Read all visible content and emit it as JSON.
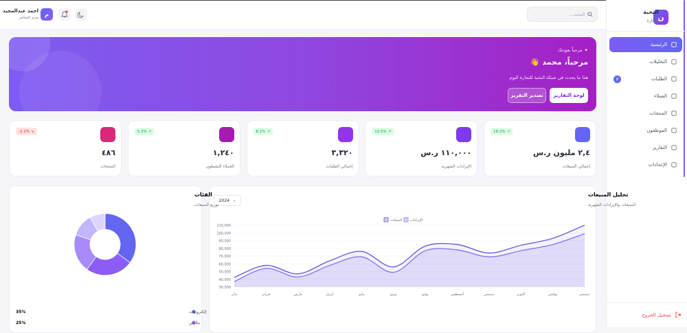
{
  "sidebar": {
    "logo": "ن",
    "title": "النخبة",
    "subtitle": "للتجارة",
    "nav": [
      {
        "label": "الرئيسية",
        "active": true
      },
      {
        "label": "التحليلات"
      },
      {
        "label": "الطلبات",
        "badge": 8
      },
      {
        "label": "العملاء"
      },
      {
        "label": "المنتجات"
      },
      {
        "label": "الموظفون"
      },
      {
        "label": "التقارير"
      },
      {
        "label": "الإعدادات"
      }
    ],
    "logout": "تسجيل الخروج"
  },
  "topbar": {
    "search_placeholder": "البحث...",
    "user": {
      "initial": "م",
      "name": "احمد عبدالمجيد",
      "role": "مدير المتاجر"
    }
  },
  "banner": {
    "eyebrow": "مرحباً بعودتك",
    "title": "مرحباً، محمد 👋",
    "subtitle": "هذا ما يحدث في شبكة النخبة للتجارة اليوم",
    "primary_button": "لوحة التقارير",
    "secondary_button": "تصدير التقرير"
  },
  "stats": [
    {
      "value": "٢,٤ مليون ر.س",
      "label": "إجمالي المبيعات",
      "change": "18.2%",
      "trend": "up",
      "color": "#6366f1"
    },
    {
      "value": "١١٠,٠٠٠ ر.س",
      "label": "الإيرادات الشهرية",
      "change": "12.5%",
      "trend": "up",
      "color": "#7c3aed"
    },
    {
      "value": "٣,٣٢٠",
      "label": "إجمالي الطلبات",
      "change": "8.1%",
      "trend": "up",
      "color": "#9333ea"
    },
    {
      "value": "١,٢٤٠",
      "label": "العملاء النشطون",
      "change": "5.3%",
      "trend": "up",
      "color": "#a21caf"
    },
    {
      "value": "٤٨٦",
      "label": "المنتجات",
      "change": "-2.1%",
      "trend": "down",
      "color": "#db2777"
    }
  ],
  "chart_data": [
    {
      "type": "line",
      "title": "تحليل المبيعات",
      "subtitle": "المبيعات والإيرادات الشهرية",
      "filter": "2024",
      "categories": [
        "يناير",
        "فبراير",
        "مارس",
        "أبريل",
        "مايو",
        "يونيو",
        "يوليو",
        "أغسطس",
        "سبتمبر",
        "أكتوبر",
        "نوفمبر",
        "ديسمبر"
      ],
      "series": [
        {
          "name": "المبيعات",
          "color": "#6d5fd3",
          "values": [
            42500,
            58000,
            47000,
            64000,
            76000,
            56000,
            83000,
            85000,
            74000,
            84000,
            93000,
            110000
          ]
        },
        {
          "name": "الإيرادات",
          "color": "#8b7cf0",
          "values": [
            37000,
            54000,
            43000,
            58000,
            69000,
            49000,
            77000,
            78000,
            69000,
            77000,
            85000,
            99000
          ]
        }
      ],
      "ylim": [
        30000,
        110000
      ],
      "yticks": [
        {
          "value": 30000,
          "label": "30,000"
        },
        {
          "value": 40000,
          "label": "40,000"
        },
        {
          "value": 50000,
          "label": "50,000"
        },
        {
          "value": 60000,
          "label": "60,000"
        },
        {
          "value": 70000,
          "label": "70,000"
        },
        {
          "value": 80000,
          "label": "80,000"
        },
        {
          "value": 90000,
          "label": "90,000"
        },
        {
          "value": 100000,
          "label": "100,000"
        },
        {
          "value": 110000,
          "label": "110,000"
        }
      ],
      "grid": true
    },
    {
      "type": "donut",
      "title": "الفئات",
      "subtitle": "توزيع المبيعات",
      "categories": [
        "إلكترونيات",
        "ملابس",
        null,
        null,
        null
      ],
      "values": [
        35,
        25,
        20,
        12,
        8
      ],
      "value_labels": [
        "35%",
        "25%",
        null,
        null,
        null
      ],
      "colors": [
        "#6366f1",
        "#8b5cf6",
        "#a78bfa",
        "#c4b5fd",
        "#ddd6fe"
      ]
    }
  ]
}
